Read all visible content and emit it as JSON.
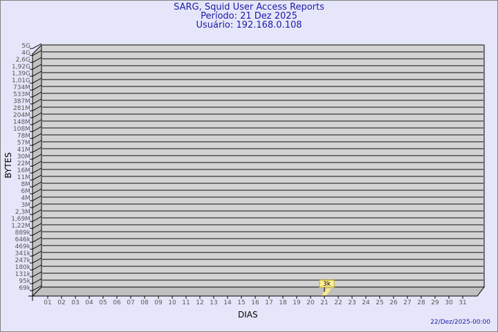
{
  "header": {
    "title": "SARG, Squid User Access Reports",
    "period": "Período: 21 Dez 2025",
    "user": "Usuário: 192.168.0.108"
  },
  "generated": "22/Dez/2025-00:00",
  "colors": {
    "background": "#e6e6fa",
    "plot": "#d3d3d3",
    "wall": "#c0c0c0",
    "title": "#1a1aa6",
    "bar": "#ffe88c"
  },
  "chart_data": {
    "type": "bar",
    "xlabel": "DIAS",
    "ylabel": "BYTES",
    "categories": [
      "01",
      "02",
      "03",
      "04",
      "05",
      "06",
      "07",
      "08",
      "09",
      "10",
      "11",
      "12",
      "13",
      "14",
      "15",
      "16",
      "17",
      "18",
      "19",
      "20",
      "21",
      "22",
      "23",
      "24",
      "25",
      "26",
      "27",
      "28",
      "29",
      "30",
      "31"
    ],
    "y_tick_labels": [
      "5G",
      "4G",
      "2,6G",
      "1,92G",
      "1,39G",
      "1,01G",
      "734M",
      "533M",
      "387M",
      "281M",
      "204M",
      "148M",
      "108M",
      "78M",
      "57M",
      "41M",
      "30M",
      "22M",
      "16M",
      "11M",
      "8M",
      "6M",
      "4M",
      "3M",
      "2,3M",
      "1,69M",
      "1,22M",
      "889k",
      "646k",
      "469k",
      "341k",
      "247k",
      "180k",
      "131k",
      "95k",
      "69k"
    ],
    "y_scale": "log",
    "grid": true,
    "series": [
      {
        "points": [
          {
            "x": "21",
            "value": 3000,
            "label": "3k"
          }
        ]
      }
    ]
  }
}
